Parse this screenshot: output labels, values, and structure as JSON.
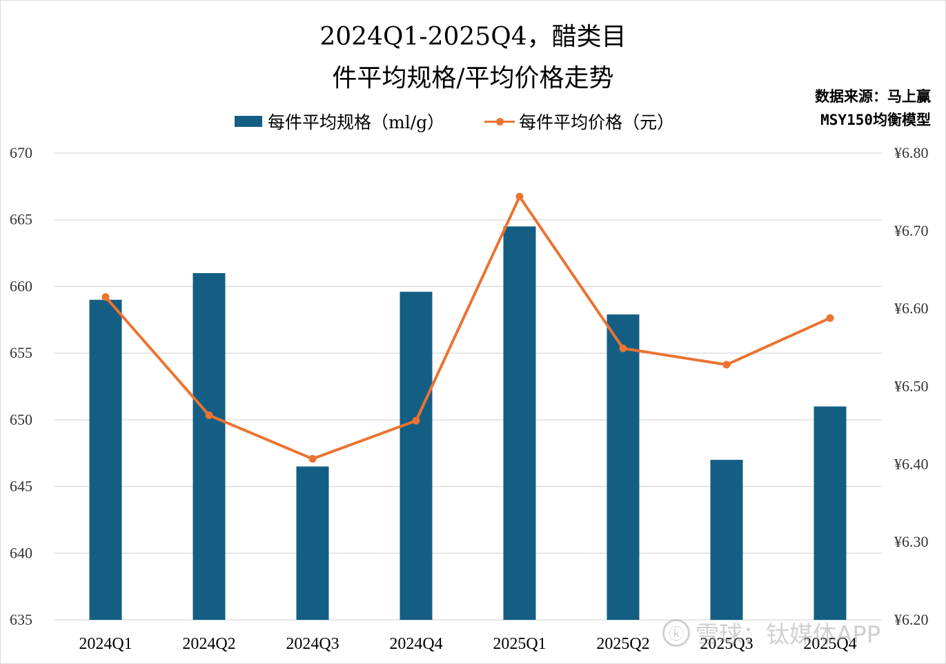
{
  "chart_data": {
    "type": "bar",
    "title_line1": "2024Q1-2025Q4，醋类目",
    "title_line2": "件平均规格/平均价格走势",
    "source_line1": "数据来源：马上赢",
    "source_line2": "MSY150均衡模型",
    "categories": [
      "2024Q1",
      "2024Q2",
      "2024Q3",
      "2024Q4",
      "2025Q1",
      "2025Q2",
      "2025Q3",
      "2025Q4"
    ],
    "series": [
      {
        "name": "每件平均规格（ml/g）",
        "kind": "bar",
        "axis": "left",
        "values": [
          659.0,
          661.0,
          646.5,
          659.6,
          664.5,
          657.9,
          647.0,
          651.0
        ]
      },
      {
        "name": "每件平均价格（元）",
        "kind": "line",
        "axis": "right",
        "values": [
          6.615,
          6.463,
          6.407,
          6.456,
          6.744,
          6.549,
          6.528,
          6.588
        ]
      }
    ],
    "y_left": {
      "min": 635,
      "max": 670,
      "ticks": [
        "635",
        "640",
        "645",
        "650",
        "655",
        "660",
        "665",
        "670"
      ]
    },
    "y_right": {
      "min": 6.2,
      "max": 6.8,
      "ticks": [
        "¥6.20",
        "¥6.30",
        "¥6.40",
        "¥6.50",
        "¥6.60",
        "¥6.70",
        "¥6.80"
      ]
    },
    "legend_position": "top",
    "grid": true,
    "colors": {
      "bar": "#155e83",
      "line": "#eb7330",
      "grid": "#d9d9d9"
    }
  },
  "watermark": {
    "logo": "ⓚ",
    "text": "雪球：钛媒体APP"
  }
}
